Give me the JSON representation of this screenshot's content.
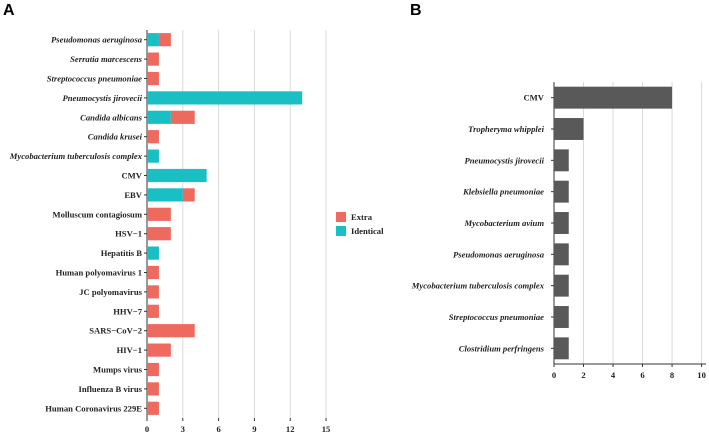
{
  "chart_data": [
    {
      "panel": "A",
      "type": "bar",
      "orientation": "horizontal",
      "stacked": true,
      "categories": [
        "Pseudomonas aeruginosa",
        "Serratia marcescens",
        "Streptococcus pneumoniae",
        "Pneumocystis jirovecii",
        "Candida albicans",
        "Candida krusei",
        "Mycobacterium tuberculosis complex",
        "CMV",
        "EBV",
        "Molluscum contagiosum",
        "HSV−1",
        "Hepatitis B",
        "Human polyomavirus 1",
        "JC polyomavirus",
        "HHV−7",
        "SARS−CoV−2",
        "HIV−1",
        "Mumps virus",
        "Influenza B virus",
        "Human Coronavirus 229E"
      ],
      "italic_categories": [
        "Pseudomonas aeruginosa",
        "Serratia marcescens",
        "Streptococcus pneumoniae",
        "Pneumocystis jirovecii",
        "Candida albicans",
        "Candida krusei",
        "Mycobacterium tuberculosis complex"
      ],
      "series": [
        {
          "name": "Identical",
          "color": "#1abfc4",
          "values": [
            1,
            0,
            0,
            13,
            2,
            0,
            1,
            5,
            3,
            0,
            0,
            1,
            0,
            0,
            0,
            0,
            0,
            0,
            0,
            0
          ]
        },
        {
          "name": "Extra",
          "color": "#ee6a5f",
          "values": [
            1,
            1,
            1,
            0,
            2,
            1,
            0,
            0,
            1,
            2,
            2,
            0,
            1,
            1,
            1,
            4,
            2,
            1,
            1,
            1
          ]
        }
      ],
      "xticks": [
        0,
        3,
        6,
        9,
        12,
        15
      ],
      "xlim": [
        0,
        15.5
      ],
      "legend": {
        "position": "right",
        "entries": [
          "Extra",
          "Identical"
        ]
      },
      "grid": "vertical"
    },
    {
      "panel": "B",
      "type": "bar",
      "orientation": "horizontal",
      "categories": [
        "CMV",
        "Tropheryma whipplei",
        "Pneumocystis jirovecii",
        "Klebsiella pneumoniae",
        "Mycobacterium avium",
        "Pseudomonas aeruginosa",
        "Mycobacterium tuberculosis complex",
        "Streptococcus pneumoniae",
        "Clostridium perfringens"
      ],
      "italic_categories": [
        "Tropheryma whipplei",
        "Pneumocystis jirovecii",
        "Klebsiella pneumoniae",
        "Mycobacterium avium",
        "Pseudomonas aeruginosa",
        "Mycobacterium tuberculosis complex",
        "Streptococcus pneumoniae",
        "Clostridium perfringens"
      ],
      "values": [
        8,
        2,
        1,
        1,
        1,
        1,
        1,
        1,
        1
      ],
      "color": "#595959",
      "xticks": [
        0,
        2,
        4,
        6,
        8,
        10
      ],
      "xlim": [
        0,
        10.3
      ],
      "grid": "vertical"
    }
  ]
}
